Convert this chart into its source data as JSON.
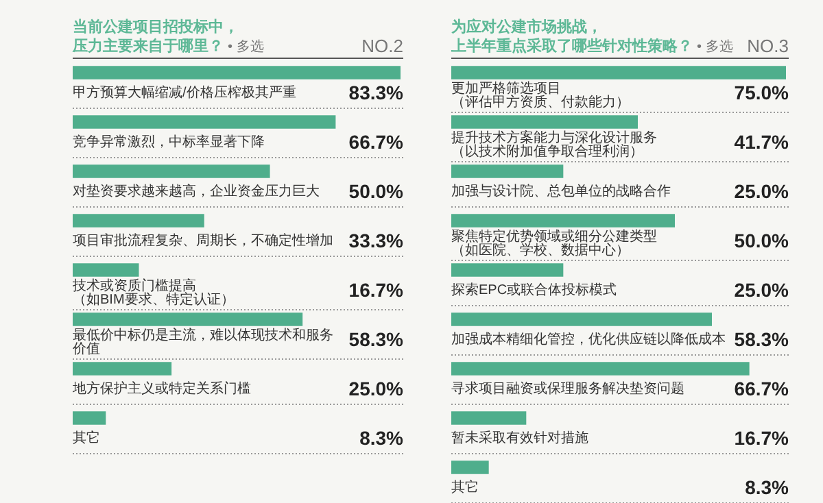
{
  "chart_data": [
    {
      "type": "bar",
      "orientation": "horizontal",
      "title": "当前公建项目招投标中，压力主要来自于哪里？",
      "subtitle": "• 多选",
      "annotations": [
        "NO.2"
      ],
      "categories": [
        "甲方预算大幅缩减/价格压榨极其严重",
        "竞争异常激烈，中标率显著下降",
        "对垫资要求越来越高，企业资金压力巨大",
        "项目审批流程复杂、周期长，不确定性增加",
        "技术或资质门槛提高（如BIM要求、特定认证）",
        "最低价中标仍是主流，难以体现技术和服务价值",
        "地方保护主义或特定关系门槛",
        "其它"
      ],
      "values": [
        83.3,
        66.7,
        50.0,
        33.3,
        16.7,
        58.3,
        25.0,
        8.3
      ],
      "value_labels": [
        "83.3%",
        "66.7%",
        "50.0%",
        "33.3%",
        "16.7%",
        "58.3%",
        "25.0%",
        "8.3%"
      ],
      "color": "#4fae8c"
    },
    {
      "type": "bar",
      "orientation": "horizontal",
      "title": "为应对公建市场挑战，上半年重点采取了哪些针对性策略？",
      "subtitle": "• 多选",
      "annotations": [
        "NO.3"
      ],
      "categories": [
        "更加严格筛选项目（评估甲方资质、付款能力）",
        "提升技术方案能力与深化设计服务（以技术附加值争取合理利润）",
        "加强与设计院、总包单位的战略合作",
        "聚焦特定优势领域或细分公建类型（如医院、学校、数据中心）",
        "探索EPC或联合体投标模式",
        "加强成本精细化管控，优化供应链以降低成本",
        "寻求项目融资或保理服务解决垫资问题",
        "暂未采取有效针对措施",
        "其它"
      ],
      "values": [
        75.0,
        41.7,
        25.0,
        50.0,
        25.0,
        58.3,
        66.7,
        16.7,
        8.3
      ],
      "value_labels": [
        "75.0%",
        "41.7%",
        "25.0%",
        "50.0%",
        "25.0%",
        "58.3%",
        "66.7%",
        "16.7%",
        "8.3%"
      ],
      "color": "#4fae8c"
    }
  ]
}
